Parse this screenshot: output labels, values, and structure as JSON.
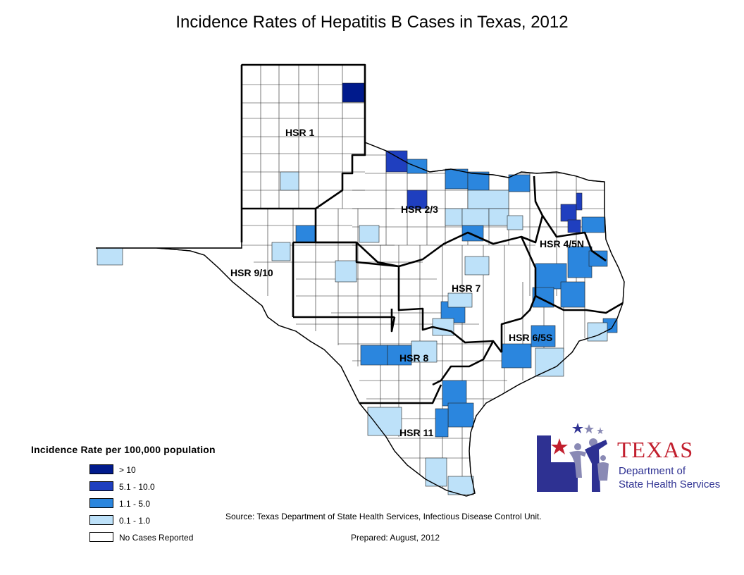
{
  "title": "Incidence Rates of Hepatitis B Cases in Texas, 2012",
  "colors": {
    "gt10": "#001a8c",
    "r5_10": "#1f3fbf",
    "r1_5": "#2b86de",
    "r0_1": "#bde1f9",
    "none": "#ffffff",
    "logo_navy": "#2e3192",
    "logo_red": "#c21f2e",
    "logo_gray": "#8a8ab5"
  },
  "regions": [
    {
      "label": "HSR 1"
    },
    {
      "label": "HSR 2/3"
    },
    {
      "label": "HSR 4/5N"
    },
    {
      "label": "HSR 9/10"
    },
    {
      "label": "HSR 7"
    },
    {
      "label": "HSR 6/5S"
    },
    {
      "label": "HSR 8"
    },
    {
      "label": "HSR 11"
    }
  ],
  "legend": {
    "title": "Incidence Rate per 100,000 population",
    "items": [
      {
        "label": "> 10",
        "color": "#001a8c"
      },
      {
        "label": "5.1 - 10.0",
        "color": "#1f3fbf"
      },
      {
        "label": "1.1 - 5.0",
        "color": "#2b86de"
      },
      {
        "label": "0.1 - 1.0",
        "color": "#bde1f9"
      },
      {
        "label": "No Cases Reported",
        "color": "#ffffff"
      }
    ]
  },
  "source": "Source: Texas Department of State Health Services, Infectious Disease Control Unit.",
  "prepared": "Prepared: August, 2012",
  "logo": {
    "texas": "TEXAS",
    "line1": "Department of",
    "line2": "State Health Services"
  }
}
